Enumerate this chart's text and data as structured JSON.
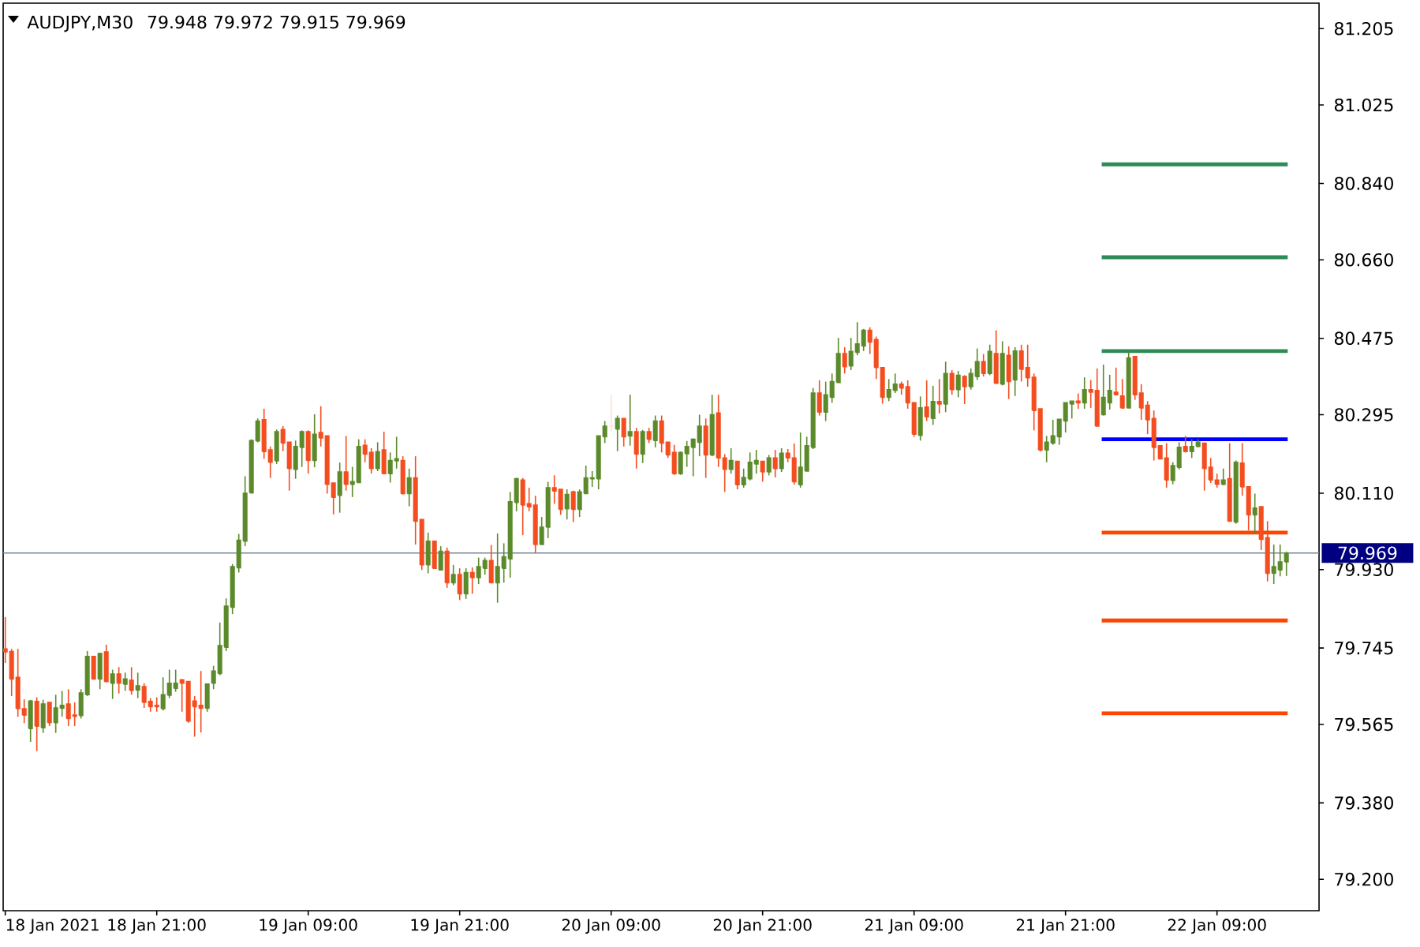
{
  "chart_data": {
    "type": "candlestick",
    "title": "AUDJPY,M30",
    "subtitle": "79.948 79.972 79.915 79.969",
    "x": [
      "2021-01-18T09:00",
      "2021-01-18T09:30",
      "2021-01-18T10:00",
      "2021-01-18T10:30",
      "2021-01-18T11:00",
      "2021-01-18T11:30",
      "2021-01-18T12:00",
      "2021-01-18T12:30",
      "2021-01-18T13:00",
      "2021-01-18T13:30",
      "2021-01-18T14:00",
      "2021-01-18T14:30",
      "2021-01-18T15:00",
      "2021-01-18T15:30",
      "2021-01-18T16:00",
      "2021-01-18T16:30",
      "2021-01-18T17:00",
      "2021-01-18T17:30",
      "2021-01-18T18:00",
      "2021-01-18T18:30",
      "2021-01-18T19:00",
      "2021-01-18T19:30",
      "2021-01-18T20:00",
      "2021-01-18T20:30",
      "2021-01-18T21:00",
      "2021-01-18T21:30",
      "2021-01-18T22:00",
      "2021-01-18T22:30",
      "2021-01-18T23:00",
      "2021-01-18T23:30",
      "2021-01-19T00:00",
      "2021-01-19T00:30",
      "2021-01-19T01:00",
      "2021-01-19T01:30",
      "2021-01-19T02:00",
      "2021-01-19T02:30",
      "2021-01-19T03:00",
      "2021-01-19T03:30",
      "2021-01-19T04:00",
      "2021-01-19T04:30",
      "2021-01-19T05:00",
      "2021-01-19T05:30",
      "2021-01-19T06:00",
      "2021-01-19T06:30",
      "2021-01-19T07:00",
      "2021-01-19T07:30",
      "2021-01-19T08:00",
      "2021-01-19T08:30",
      "2021-01-19T09:00",
      "2021-01-19T09:30",
      "2021-01-19T10:00",
      "2021-01-19T10:30",
      "2021-01-19T11:00",
      "2021-01-19T11:30",
      "2021-01-19T12:00",
      "2021-01-19T12:30",
      "2021-01-19T13:00",
      "2021-01-19T13:30",
      "2021-01-19T14:00",
      "2021-01-19T14:30",
      "2021-01-19T15:00",
      "2021-01-19T15:30",
      "2021-01-19T16:00",
      "2021-01-19T16:30",
      "2021-01-19T17:00",
      "2021-01-19T17:30",
      "2021-01-19T18:00",
      "2021-01-19T18:30",
      "2021-01-19T19:00",
      "2021-01-19T19:30",
      "2021-01-19T20:00",
      "2021-01-19T20:30",
      "2021-01-19T21:00",
      "2021-01-19T21:30",
      "2021-01-19T22:00",
      "2021-01-19T22:30",
      "2021-01-19T23:00",
      "2021-01-19T23:30",
      "2021-01-20T00:00",
      "2021-01-20T00:30",
      "2021-01-20T01:00",
      "2021-01-20T01:30",
      "2021-01-20T02:00",
      "2021-01-20T02:30",
      "2021-01-20T03:00",
      "2021-01-20T03:30",
      "2021-01-20T04:00",
      "2021-01-20T04:30",
      "2021-01-20T05:00",
      "2021-01-20T05:30",
      "2021-01-20T06:00",
      "2021-01-20T06:30",
      "2021-01-20T07:00",
      "2021-01-20T07:30",
      "2021-01-20T08:00",
      "2021-01-20T08:30",
      "2021-01-20T09:00",
      "2021-01-20T09:30",
      "2021-01-20T10:00",
      "2021-01-20T10:30",
      "2021-01-20T11:00",
      "2021-01-20T11:30",
      "2021-01-20T12:00",
      "2021-01-20T12:30",
      "2021-01-20T13:00",
      "2021-01-20T13:30",
      "2021-01-20T14:00",
      "2021-01-20T14:30",
      "2021-01-20T15:00",
      "2021-01-20T15:30",
      "2021-01-20T16:00",
      "2021-01-20T16:30",
      "2021-01-20T17:00",
      "2021-01-20T17:30",
      "2021-01-20T18:00",
      "2021-01-20T18:30",
      "2021-01-20T19:00",
      "2021-01-20T19:30",
      "2021-01-20T20:00",
      "2021-01-20T20:30",
      "2021-01-20T21:00",
      "2021-01-20T21:30",
      "2021-01-20T22:00",
      "2021-01-20T22:30",
      "2021-01-20T23:00",
      "2021-01-20T23:30",
      "2021-01-21T00:00",
      "2021-01-21T00:30",
      "2021-01-21T01:00",
      "2021-01-21T01:30",
      "2021-01-21T02:00",
      "2021-01-21T02:30",
      "2021-01-21T03:00",
      "2021-01-21T03:30",
      "2021-01-21T04:00",
      "2021-01-21T04:30",
      "2021-01-21T05:00",
      "2021-01-21T05:30",
      "2021-01-21T06:00",
      "2021-01-21T06:30",
      "2021-01-21T07:00",
      "2021-01-21T07:30",
      "2021-01-21T08:00",
      "2021-01-21T08:30",
      "2021-01-21T09:00",
      "2021-01-21T09:30",
      "2021-01-21T10:00",
      "2021-01-21T10:30",
      "2021-01-21T11:00",
      "2021-01-21T11:30",
      "2021-01-21T12:00",
      "2021-01-21T12:30",
      "2021-01-21T13:00",
      "2021-01-21T13:30",
      "2021-01-21T14:00",
      "2021-01-21T14:30",
      "2021-01-21T15:00",
      "2021-01-21T15:30",
      "2021-01-21T16:00",
      "2021-01-21T16:30",
      "2021-01-21T17:00",
      "2021-01-21T17:30",
      "2021-01-21T18:00",
      "2021-01-21T18:30",
      "2021-01-21T19:00",
      "2021-01-21T19:30",
      "2021-01-21T20:00",
      "2021-01-21T20:30",
      "2021-01-21T21:00",
      "2021-01-21T21:30",
      "2021-01-21T22:00",
      "2021-01-21T22:30",
      "2021-01-21T23:00",
      "2021-01-21T23:30",
      "2021-01-22T00:00",
      "2021-01-22T00:30",
      "2021-01-22T01:00",
      "2021-01-22T01:30",
      "2021-01-22T02:00",
      "2021-01-22T02:30",
      "2021-01-22T03:00",
      "2021-01-22T03:30",
      "2021-01-22T04:00",
      "2021-01-22T04:30",
      "2021-01-22T05:00",
      "2021-01-22T05:30",
      "2021-01-22T06:00",
      "2021-01-22T06:30",
      "2021-01-22T07:00",
      "2021-01-22T07:30",
      "2021-01-22T08:00",
      "2021-01-22T08:30",
      "2021-01-22T09:00",
      "2021-01-22T09:30",
      "2021-01-22T10:00",
      "2021-01-22T10:30",
      "2021-01-22T11:00",
      "2021-01-22T11:30",
      "2021-01-22T12:00",
      "2021-01-22T12:30",
      "2021-01-22T13:00",
      "2021-01-22T13:30",
      "2021-01-22T14:00",
      "2021-01-22T14:30"
    ],
    "ohlc": [
      [
        79.743,
        79.818,
        79.71,
        79.736
      ],
      [
        79.737,
        79.743,
        79.632,
        79.672
      ],
      [
        79.676,
        79.743,
        79.583,
        79.602
      ],
      [
        79.602,
        79.624,
        79.568,
        79.587
      ],
      [
        79.555,
        79.623,
        79.524,
        79.62
      ],
      [
        79.619,
        79.629,
        79.502,
        79.561
      ],
      [
        79.557,
        79.623,
        79.545,
        79.613
      ],
      [
        79.617,
        79.617,
        79.561,
        79.569
      ],
      [
        79.569,
        79.635,
        79.545,
        79.604
      ],
      [
        79.603,
        79.644,
        79.583,
        79.61
      ],
      [
        79.613,
        79.648,
        79.561,
        79.579
      ],
      [
        79.587,
        79.617,
        79.561,
        79.584
      ],
      [
        79.586,
        79.648,
        79.579,
        79.639
      ],
      [
        79.635,
        79.738,
        79.632,
        79.725
      ],
      [
        79.725,
        79.725,
        79.672,
        79.672
      ],
      [
        79.672,
        79.732,
        79.648,
        79.732
      ],
      [
        79.736,
        79.753,
        79.666,
        79.666
      ],
      [
        79.662,
        79.694,
        79.625,
        79.684
      ],
      [
        79.684,
        79.7,
        79.638,
        79.662
      ],
      [
        79.66,
        79.687,
        79.644,
        79.672
      ],
      [
        79.669,
        79.7,
        79.635,
        79.645
      ],
      [
        79.646,
        79.687,
        79.627,
        79.656
      ],
      [
        79.654,
        79.662,
        79.604,
        79.617
      ],
      [
        79.619,
        79.627,
        79.595,
        79.607
      ],
      [
        79.61,
        79.629,
        79.595,
        79.607
      ],
      [
        79.602,
        79.676,
        79.598,
        79.635
      ],
      [
        79.634,
        79.694,
        79.627,
        79.662
      ],
      [
        79.65,
        79.694,
        79.642,
        79.662
      ],
      [
        79.67,
        79.672,
        79.595,
        79.662
      ],
      [
        79.666,
        79.666,
        79.569,
        79.573
      ],
      [
        79.62,
        79.632,
        79.536,
        79.607
      ],
      [
        79.61,
        79.691,
        79.546,
        79.603
      ],
      [
        79.603,
        79.66,
        79.595,
        79.66
      ],
      [
        79.662,
        79.703,
        79.648,
        79.691
      ],
      [
        79.685,
        79.805,
        79.681,
        79.751
      ],
      [
        79.747,
        79.862,
        79.738,
        79.844
      ],
      [
        79.841,
        79.943,
        79.825,
        79.937
      ],
      [
        79.934,
        80.014,
        79.923,
        79.999
      ],
      [
        79.997,
        80.15,
        79.985,
        80.11
      ],
      [
        80.111,
        80.237,
        80.109,
        80.234
      ],
      [
        80.233,
        80.286,
        80.23,
        80.28
      ],
      [
        80.283,
        80.309,
        80.191,
        80.208
      ],
      [
        80.212,
        80.22,
        80.146,
        80.183
      ],
      [
        80.186,
        80.26,
        80.179,
        80.255
      ],
      [
        80.26,
        80.268,
        80.209,
        80.228
      ],
      [
        80.23,
        80.23,
        80.116,
        80.168
      ],
      [
        80.166,
        80.234,
        80.144,
        80.22
      ],
      [
        80.218,
        80.258,
        80.172,
        80.255
      ],
      [
        80.255,
        80.258,
        80.156,
        80.187
      ],
      [
        80.187,
        80.296,
        80.171,
        80.249
      ],
      [
        80.253,
        80.315,
        80.22,
        80.24
      ],
      [
        80.245,
        80.245,
        80.109,
        80.131
      ],
      [
        80.134,
        80.134,
        80.06,
        80.1
      ],
      [
        80.105,
        80.182,
        80.064,
        80.16
      ],
      [
        80.16,
        80.245,
        80.116,
        80.131
      ],
      [
        80.131,
        80.172,
        80.101,
        80.137
      ],
      [
        80.135,
        80.237,
        80.135,
        80.22
      ],
      [
        80.223,
        80.237,
        80.183,
        80.202
      ],
      [
        80.206,
        80.216,
        80.156,
        80.168
      ],
      [
        80.168,
        80.23,
        80.162,
        80.208
      ],
      [
        80.212,
        80.255,
        80.156,
        80.156
      ],
      [
        80.156,
        80.206,
        80.135,
        80.187
      ],
      [
        80.186,
        80.243,
        80.168,
        80.191
      ],
      [
        80.187,
        80.197,
        80.107,
        80.109
      ],
      [
        80.109,
        80.168,
        80.079,
        80.146
      ],
      [
        80.146,
        80.197,
        79.989,
        80.044
      ],
      [
        80.048,
        80.048,
        79.929,
        79.941
      ],
      [
        79.941,
        80.017,
        79.921,
        79.997
      ],
      [
        79.997,
        79.997,
        79.933,
        79.933
      ],
      [
        79.929,
        79.985,
        79.929,
        79.973
      ],
      [
        79.973,
        79.982,
        79.887,
        79.899
      ],
      [
        79.899,
        79.941,
        79.893,
        79.918
      ],
      [
        79.918,
        79.933,
        79.858,
        79.873
      ],
      [
        79.873,
        79.933,
        79.861,
        79.923
      ],
      [
        79.923,
        79.935,
        79.873,
        79.911
      ],
      [
        79.911,
        79.958,
        79.896,
        79.937
      ],
      [
        79.933,
        79.958,
        79.918,
        79.951
      ],
      [
        79.951,
        79.988,
        79.899,
        79.899
      ],
      [
        79.899,
        80.015,
        79.852,
        79.937
      ],
      [
        79.933,
        79.992,
        79.899,
        79.96
      ],
      [
        79.955,
        80.113,
        79.911,
        80.09
      ],
      [
        80.088,
        80.146,
        80.067,
        80.144
      ],
      [
        80.141,
        80.146,
        80.011,
        80.082
      ],
      [
        80.085,
        80.123,
        80.067,
        80.078
      ],
      [
        80.082,
        80.104,
        79.97,
        79.989
      ],
      [
        79.989,
        80.054,
        79.989,
        80.03
      ],
      [
        80.03,
        80.137,
        80.004,
        80.123
      ],
      [
        80.123,
        80.152,
        80.085,
        80.115
      ],
      [
        80.119,
        80.119,
        80.059,
        80.072
      ],
      [
        80.073,
        80.119,
        80.048,
        80.107
      ],
      [
        80.113,
        80.116,
        80.042,
        80.072
      ],
      [
        80.072,
        80.119,
        80.054,
        80.113
      ],
      [
        80.109,
        80.175,
        80.109,
        80.146
      ],
      [
        80.144,
        80.162,
        80.125,
        80.146
      ],
      [
        80.144,
        80.245,
        80.119,
        80.245
      ],
      [
        80.243,
        80.28,
        80.228,
        80.268
      ],
      [
        80.268,
        80.342,
        80.255,
        80.268
      ],
      [
        80.261,
        80.293,
        80.209,
        80.286
      ],
      [
        80.286,
        80.286,
        80.22,
        80.243
      ],
      [
        80.245,
        80.342,
        80.222,
        80.255
      ],
      [
        80.255,
        80.264,
        80.168,
        80.202
      ],
      [
        80.202,
        80.259,
        80.181,
        80.255
      ],
      [
        80.255,
        80.264,
        80.228,
        80.237
      ],
      [
        80.234,
        80.293,
        80.218,
        80.28
      ],
      [
        80.28,
        80.293,
        80.206,
        80.228
      ],
      [
        80.23,
        80.23,
        80.193,
        80.2
      ],
      [
        80.206,
        80.224,
        80.153,
        80.156
      ],
      [
        80.156,
        80.208,
        80.153,
        80.206
      ],
      [
        80.203,
        80.233,
        80.172,
        80.22
      ],
      [
        80.218,
        80.239,
        80.15,
        80.237
      ],
      [
        80.23,
        80.295,
        80.197,
        80.268
      ],
      [
        80.268,
        80.286,
        80.146,
        80.2
      ],
      [
        80.2,
        80.342,
        80.197,
        80.295
      ],
      [
        80.299,
        80.342,
        80.172,
        80.193
      ],
      [
        80.193,
        80.202,
        80.113,
        80.166
      ],
      [
        80.166,
        80.216,
        80.156,
        80.187
      ],
      [
        80.185,
        80.185,
        80.119,
        80.13
      ],
      [
        80.13,
        80.168,
        80.123,
        80.147
      ],
      [
        80.144,
        80.206,
        80.14,
        80.183
      ],
      [
        80.179,
        80.212,
        80.156,
        80.187
      ],
      [
        80.185,
        80.185,
        80.137,
        80.16
      ],
      [
        80.16,
        80.2,
        80.152,
        80.193
      ],
      [
        80.193,
        80.212,
        80.147,
        80.168
      ],
      [
        80.168,
        80.216,
        80.16,
        80.204
      ],
      [
        80.204,
        80.214,
        80.183,
        80.193
      ],
      [
        80.193,
        80.227,
        80.13,
        80.137
      ],
      [
        80.13,
        80.253,
        80.123,
        80.171
      ],
      [
        80.162,
        80.243,
        80.162,
        80.222
      ],
      [
        80.218,
        80.358,
        80.214,
        80.346
      ],
      [
        80.346,
        80.376,
        80.293,
        80.301
      ],
      [
        80.301,
        80.373,
        80.28,
        80.342
      ],
      [
        80.336,
        80.392,
        80.323,
        80.373
      ],
      [
        80.371,
        80.476,
        80.371,
        80.439
      ],
      [
        80.439,
        80.454,
        80.392,
        80.408
      ],
      [
        80.41,
        80.476,
        80.4,
        80.444
      ],
      [
        80.442,
        80.513,
        80.435,
        80.462
      ],
      [
        80.457,
        80.497,
        80.445,
        80.494
      ],
      [
        80.494,
        80.501,
        80.438,
        80.466
      ],
      [
        80.472,
        80.479,
        80.379,
        80.406
      ],
      [
        80.406,
        80.406,
        80.321,
        80.336
      ],
      [
        80.336,
        80.379,
        80.327,
        80.354
      ],
      [
        80.352,
        80.392,
        80.346,
        80.367
      ],
      [
        80.367,
        80.373,
        80.342,
        80.358
      ],
      [
        80.361,
        80.376,
        80.309,
        80.323
      ],
      [
        80.323,
        80.323,
        80.243,
        80.249
      ],
      [
        80.246,
        80.338,
        80.234,
        80.311
      ],
      [
        80.313,
        80.376,
        80.28,
        80.29
      ],
      [
        80.286,
        80.363,
        80.271,
        80.326
      ],
      [
        80.326,
        80.379,
        80.298,
        80.32
      ],
      [
        80.32,
        80.42,
        80.301,
        80.392
      ],
      [
        80.392,
        80.4,
        80.342,
        80.354
      ],
      [
        80.354,
        80.398,
        80.336,
        80.388
      ],
      [
        80.385,
        80.388,
        80.32,
        80.361
      ],
      [
        80.361,
        80.404,
        80.354,
        80.392
      ],
      [
        80.385,
        80.451,
        80.377,
        80.42
      ],
      [
        80.42,
        80.438,
        80.385,
        80.392
      ],
      [
        80.392,
        80.46,
        80.388,
        80.444
      ],
      [
        80.439,
        80.494,
        80.369,
        80.369
      ],
      [
        80.367,
        80.468,
        80.364,
        80.439
      ],
      [
        80.435,
        80.456,
        80.332,
        80.373
      ],
      [
        80.377,
        80.454,
        80.339,
        80.445
      ],
      [
        80.445,
        80.46,
        80.373,
        80.402
      ],
      [
        80.406,
        80.46,
        80.361,
        80.382
      ],
      [
        80.383,
        80.392,
        80.258,
        80.305
      ],
      [
        80.309,
        80.309,
        80.208,
        80.212
      ],
      [
        80.212,
        80.245,
        80.183,
        80.23
      ],
      [
        80.228,
        80.283,
        80.224,
        80.245
      ],
      [
        80.243,
        80.284,
        80.224,
        80.284
      ],
      [
        80.28,
        80.323,
        80.253,
        80.323
      ],
      [
        80.32,
        80.327,
        80.286,
        80.327
      ],
      [
        80.327,
        80.345,
        80.309,
        80.323
      ],
      [
        80.323,
        80.383,
        80.309,
        80.354
      ],
      [
        80.354,
        80.377,
        80.311,
        80.348
      ],
      [
        80.352,
        80.404,
        80.268,
        80.268
      ],
      [
        80.295,
        80.413,
        80.293,
        80.336
      ],
      [
        80.323,
        80.389,
        80.307,
        80.352
      ],
      [
        80.348,
        80.406,
        80.342,
        80.342
      ],
      [
        80.339,
        80.379,
        80.309,
        80.311
      ],
      [
        80.311,
        80.444,
        80.311,
        80.429
      ],
      [
        80.432,
        80.432,
        80.33,
        80.342
      ],
      [
        80.346,
        80.367,
        80.283,
        80.311
      ],
      [
        80.317,
        80.327,
        80.249,
        80.283
      ],
      [
        80.286,
        80.305,
        80.187,
        80.218
      ],
      [
        80.222,
        80.223,
        80.19,
        80.191
      ],
      [
        80.193,
        80.228,
        80.123,
        80.141
      ],
      [
        80.14,
        80.183,
        80.131,
        80.175
      ],
      [
        80.171,
        80.23,
        80.166,
        80.218
      ],
      [
        80.22,
        80.245,
        80.206,
        80.208
      ],
      [
        80.208,
        80.237,
        80.193,
        80.22
      ],
      [
        80.22,
        80.237,
        80.218,
        80.23
      ],
      [
        80.228,
        80.228,
        80.116,
        80.168
      ],
      [
        80.171,
        80.193,
        80.134,
        80.141
      ],
      [
        80.141,
        80.156,
        80.123,
        80.131
      ],
      [
        80.131,
        80.168,
        80.129,
        80.141
      ],
      [
        80.144,
        80.228,
        80.044,
        80.044
      ],
      [
        80.042,
        80.187,
        80.038,
        80.183
      ],
      [
        80.181,
        80.228,
        80.104,
        80.125
      ],
      [
        80.125,
        80.125,
        80.022,
        80.059
      ],
      [
        80.059,
        80.109,
        80.014,
        80.075
      ],
      [
        80.078,
        80.078,
        79.976,
        80.001
      ],
      [
        80.005,
        80.044,
        79.902,
        79.921
      ],
      [
        79.921,
        79.989,
        79.896,
        79.937
      ],
      [
        79.929,
        79.989,
        79.914,
        79.948
      ],
      [
        79.948,
        79.972,
        79.915,
        79.969
      ]
    ],
    "colors": [
      "#f44d1f",
      "#f44d1f",
      "#f44d1f",
      "#f44d1f",
      "#5b8a2b",
      "#f44d1f",
      "#5b8a2b",
      "#f44d1f",
      "#5b8a2b",
      "#5b8a2b",
      "#f44d1f",
      "#f44d1f",
      "#5b8a2b",
      "#5b8a2b",
      "#f44d1f",
      "#5b8a2b",
      "#f44d1f",
      "#5b8a2b",
      "#f44d1f",
      "#5b8a2b",
      "#f44d1f",
      "#5b8a2b",
      "#f44d1f",
      "#f44d1f",
      "#f44d1f",
      "#5b8a2b",
      "#5b8a2b",
      "#5b8a2b",
      "#f44d1f",
      "#f44d1f",
      "#f44d1f",
      "#f44d1f",
      "#5b8a2b",
      "#5b8a2b",
      "#5b8a2b",
      "#5b8a2b",
      "#5b8a2b",
      "#5b8a2b",
      "#5b8a2b",
      "#5b8a2b",
      "#5b8a2b",
      "#f44d1f",
      "#f44d1f",
      "#5b8a2b",
      "#f44d1f",
      "#f44d1f",
      "#5b8a2b",
      "#5b8a2b",
      "#f44d1f",
      "#5b8a2b",
      "#f44d1f",
      "#f44d1f",
      "#f44d1f",
      "#5b8a2b",
      "#f44d1f",
      "#5b8a2b",
      "#5b8a2b",
      "#f44d1f",
      "#f44d1f",
      "#5b8a2b",
      "#f44d1f",
      "#5b8a2b",
      "#5b8a2b",
      "#f44d1f",
      "#5b8a2b",
      "#f44d1f",
      "#f44d1f",
      "#5b8a2b",
      "#f44d1f",
      "#5b8a2b",
      "#f44d1f",
      "#5b8a2b",
      "#f44d1f",
      "#5b8a2b",
      "#f44d1f",
      "#5b8a2b",
      "#5b8a2b",
      "#f44d1f",
      "#5b8a2b",
      "#5b8a2b",
      "#5b8a2b",
      "#5b8a2b",
      "#f44d1f",
      "#f44d1f",
      "#f44d1f",
      "#5b8a2b",
      "#5b8a2b",
      "#f44d1f",
      "#f44d1f",
      "#5b8a2b",
      "#f44d1f",
      "#5b8a2b",
      "#5b8a2b",
      "#5b8a2b",
      "#5b8a2b",
      "#5b8a2b",
      "#fbe3d1",
      "#5b8a2b",
      "#f44d1f",
      "#5b8a2b",
      "#f44d1f",
      "#5b8a2b",
      "#f44d1f",
      "#5b8a2b",
      "#f44d1f",
      "#f44d1f",
      "#f44d1f",
      "#5b8a2b",
      "#5b8a2b",
      "#5b8a2b",
      "#5b8a2b",
      "#f44d1f",
      "#5b8a2b",
      "#f44d1f",
      "#f44d1f",
      "#5b8a2b",
      "#f44d1f",
      "#5b8a2b",
      "#5b8a2b",
      "#5b8a2b",
      "#f44d1f",
      "#5b8a2b",
      "#f44d1f",
      "#5b8a2b",
      "#f44d1f",
      "#f44d1f",
      "#5b8a2b",
      "#5b8a2b",
      "#5b8a2b",
      "#f44d1f",
      "#5b8a2b",
      "#5b8a2b",
      "#5b8a2b",
      "#f44d1f",
      "#5b8a2b",
      "#5b8a2b",
      "#5b8a2b",
      "#f44d1f",
      "#f44d1f",
      "#f44d1f",
      "#5b8a2b",
      "#5b8a2b",
      "#f44d1f",
      "#f44d1f",
      "#f44d1f",
      "#5b8a2b",
      "#f44d1f",
      "#5b8a2b",
      "#f44d1f",
      "#5b8a2b",
      "#f44d1f",
      "#5b8a2b",
      "#f44d1f",
      "#5b8a2b",
      "#5b8a2b",
      "#f44d1f",
      "#5b8a2b",
      "#f44d1f",
      "#5b8a2b",
      "#f44d1f",
      "#5b8a2b",
      "#f44d1f",
      "#f44d1f",
      "#f44d1f",
      "#f44d1f",
      "#5b8a2b",
      "#5b8a2b",
      "#5b8a2b",
      "#5b8a2b",
      "#5b8a2b",
      "#f44d1f",
      "#5b8a2b",
      "#f44d1f",
      "#f44d1f",
      "#5b8a2b",
      "#5b8a2b",
      "#f44d1f",
      "#f44d1f",
      "#5b8a2b",
      "#f44d1f",
      "#f44d1f",
      "#f44d1f",
      "#f44d1f",
      "#f44d1f",
      "#f44d1f",
      "#5b8a2b",
      "#5b8a2b",
      "#f44d1f",
      "#5b8a2b",
      "#5b8a2b",
      "#f44d1f",
      "#f44d1f",
      "#f44d1f",
      "#5b8a2b",
      "#f44d1f",
      "#5b8a2b",
      "#f44d1f",
      "#f44d1f",
      "#5b8a2b",
      "#f44d1f",
      "#f44d1f",
      "#5b8a2b",
      "#5b8a2b",
      "#5b8a2b"
    ],
    "series": [
      {
        "type": "line",
        "x": [
          "2021-01-21T23:52",
          "2021-01-22T14:36"
        ],
        "values": [
          80.885,
          80.885
        ],
        "color": "#2e8b57"
      },
      {
        "type": "line",
        "x": [
          "2021-01-21T23:52",
          "2021-01-22T14:36"
        ],
        "values": [
          80.666,
          80.666
        ],
        "color": "#2e8b57"
      },
      {
        "type": "line",
        "x": [
          "2021-01-21T23:52",
          "2021-01-22T14:36"
        ],
        "values": [
          80.445,
          80.445
        ],
        "color": "#2e8b57"
      },
      {
        "type": "line",
        "x": [
          "2021-01-21T23:52",
          "2021-01-22T14:36"
        ],
        "values": [
          80.237,
          80.237
        ],
        "color": "#0000ff"
      },
      {
        "type": "line",
        "x": [
          "2021-01-21T23:52",
          "2021-01-22T14:36"
        ],
        "values": [
          80.017,
          80.017
        ],
        "color": "#ff4500"
      },
      {
        "type": "line",
        "x": [
          "2021-01-21T23:52",
          "2021-01-22T14:36"
        ],
        "values": [
          79.81,
          79.81
        ],
        "color": "#ff4500"
      },
      {
        "type": "line",
        "x": [
          "2021-01-21T23:52",
          "2021-01-22T14:36"
        ],
        "values": [
          79.591,
          79.591
        ],
        "color": "#ff4500"
      }
    ],
    "ref_lines": [
      {
        "axis": "y",
        "value": 79.969,
        "label": "79.969",
        "color": "#778899"
      }
    ],
    "xlim": [
      "2021-01-18T08:50",
      "2021-01-22T17:05"
    ],
    "ylim": [
      79.126,
      81.265
    ],
    "xticks": [
      {
        "value": "2021-01-18T09:00",
        "label": "18 Jan 2021"
      },
      {
        "value": "2021-01-18T21:00",
        "label": "18 Jan 21:00"
      },
      {
        "value": "2021-01-19T09:00",
        "label": "19 Jan 09:00"
      },
      {
        "value": "2021-01-19T21:00",
        "label": "19 Jan 21:00"
      },
      {
        "value": "2021-01-20T09:00",
        "label": "20 Jan 09:00"
      },
      {
        "value": "2021-01-20T21:00",
        "label": "20 Jan 21:00"
      },
      {
        "value": "2021-01-21T09:00",
        "label": "21 Jan 09:00"
      },
      {
        "value": "2021-01-21T21:00",
        "label": "21 Jan 21:00"
      },
      {
        "value": "2021-01-22T09:00",
        "label": "22 Jan 09:00"
      }
    ],
    "yticks": [
      {
        "value": 79.2,
        "label": "79.200"
      },
      {
        "value": 79.38,
        "label": "79.380"
      },
      79.565,
      79.745,
      {
        "value": 79.93,
        "label": "79.930"
      },
      {
        "value": 80.11,
        "label": "80.110"
      },
      80.295,
      80.475,
      {
        "value": 80.66,
        "label": "80.660"
      },
      {
        "value": 80.84,
        "label": "80.840"
      },
      81.025,
      81.205
    ]
  }
}
